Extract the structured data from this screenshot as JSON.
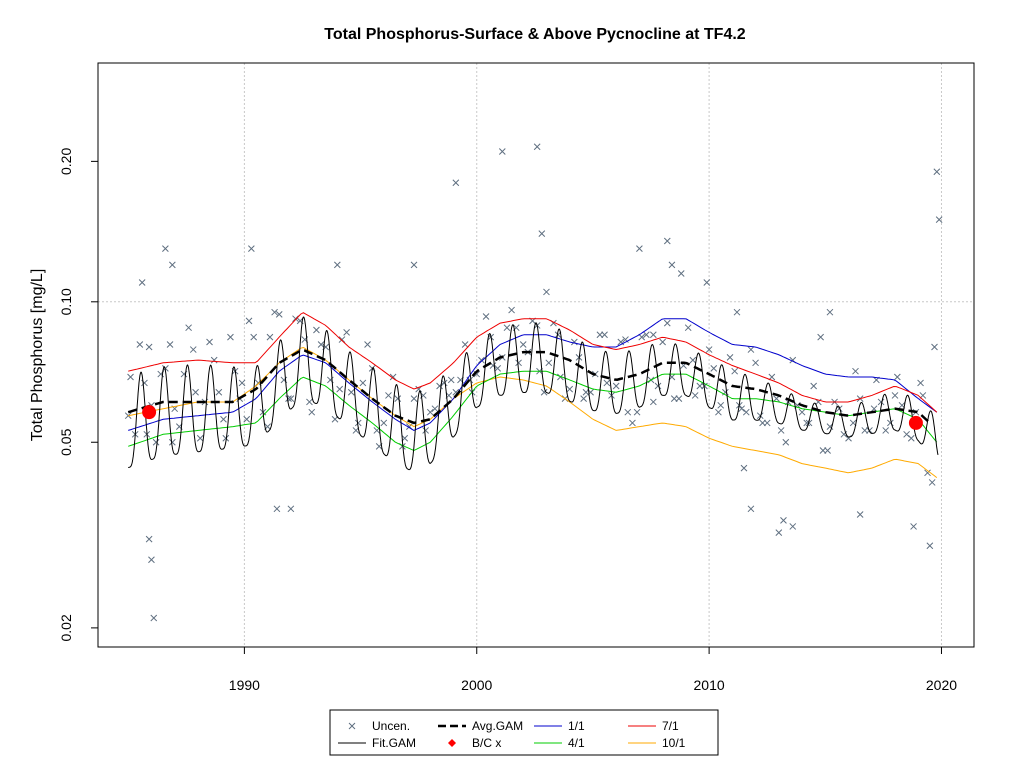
{
  "chart_data": {
    "type": "line",
    "title": "Total Phosphorus-Surface & Above Pycnocline at TF4.2",
    "xlabel": "",
    "ylabel": "Total Phosphorus [mg/L]",
    "y_scale": "log",
    "xlim": [
      1983.7,
      2021.4
    ],
    "ylim": [
      0.0182,
      0.325
    ],
    "x_ticks": [
      1990,
      2000,
      2010,
      2020
    ],
    "y_ticks": [
      0.02,
      0.05,
      0.1,
      0.2
    ],
    "y_tick_labels": [
      "0.02",
      "0.05",
      "0.10",
      "0.20"
    ],
    "grid": true,
    "colors": {
      "uncen": "#5f6f80",
      "fit": "#000000",
      "avg": "#000000",
      "bc": "#ff0000",
      "jan": "#0000cc",
      "apr": "#00cc00",
      "jul": "#ee0000",
      "oct": "#ffaa00"
    },
    "legend": {
      "placement": "bottom",
      "entries": [
        {
          "key": "uncen",
          "label": "Uncen."
        },
        {
          "key": "avg",
          "label": "Avg.GAM"
        },
        {
          "key": "jan",
          "label": "1/1"
        },
        {
          "key": "jul",
          "label": "7/1"
        },
        {
          "key": "fit",
          "label": "Fit.GAM"
        },
        {
          "key": "bc",
          "label": "B/C x"
        },
        {
          "key": "apr",
          "label": "4/1"
        },
        {
          "key": "oct",
          "label": "10/1"
        }
      ]
    },
    "bc_points": [
      {
        "x": 1985.9,
        "y": 0.058
      },
      {
        "x": 2018.9,
        "y": 0.055
      }
    ],
    "avg_gam": {
      "x": [
        1985.0,
        1986.5,
        1988.0,
        1989.5,
        1990.5,
        1991.5,
        1992.5,
        1993.5,
        1994.5,
        1995.5,
        1996.5,
        1997.3,
        1998.0,
        1999.0,
        2000.0,
        2001.0,
        2002.0,
        2003.0,
        2004.0,
        2005.0,
        2006.0,
        2007.0,
        2008.0,
        2009.0,
        2010.0,
        2011.0,
        2012.0,
        2013.0,
        2014.0,
        2015.0,
        2016.0,
        2017.0,
        2018.0,
        2019.0,
        2019.5
      ],
      "y": [
        0.058,
        0.061,
        0.061,
        0.061,
        0.065,
        0.074,
        0.079,
        0.075,
        0.068,
        0.062,
        0.057,
        0.055,
        0.056,
        0.062,
        0.071,
        0.076,
        0.078,
        0.078,
        0.075,
        0.07,
        0.068,
        0.07,
        0.074,
        0.074,
        0.07,
        0.066,
        0.065,
        0.063,
        0.06,
        0.058,
        0.057,
        0.058,
        0.059,
        0.058,
        0.055
      ]
    },
    "seasonal_curves": {
      "x": [
        1985.0,
        1986.5,
        1988.0,
        1989.5,
        1990.5,
        1991.5,
        1992.5,
        1993.5,
        1994.5,
        1995.5,
        1996.5,
        1997.3,
        1998.0,
        1999.0,
        2000.0,
        2001.0,
        2002.0,
        2003.0,
        2004.0,
        2005.0,
        2006.0,
        2007.0,
        2008.0,
        2009.0,
        2010.0,
        2011.0,
        2012.0,
        2013.0,
        2014.0,
        2015.0,
        2016.0,
        2017.0,
        2018.0,
        2019.0,
        2019.8
      ],
      "jan": [
        0.053,
        0.056,
        0.057,
        0.058,
        0.062,
        0.071,
        0.077,
        0.074,
        0.067,
        0.061,
        0.056,
        0.053,
        0.055,
        0.062,
        0.073,
        0.081,
        0.085,
        0.085,
        0.082,
        0.08,
        0.08,
        0.085,
        0.092,
        0.092,
        0.086,
        0.081,
        0.08,
        0.077,
        0.073,
        0.07,
        0.069,
        0.069,
        0.068,
        0.062,
        0.058
      ],
      "apr": [
        0.049,
        0.052,
        0.053,
        0.054,
        0.055,
        0.062,
        0.069,
        0.066,
        0.06,
        0.055,
        0.05,
        0.048,
        0.05,
        0.057,
        0.066,
        0.07,
        0.071,
        0.071,
        0.068,
        0.065,
        0.064,
        0.066,
        0.07,
        0.07,
        0.066,
        0.062,
        0.062,
        0.061,
        0.059,
        0.058,
        0.057,
        0.058,
        0.059,
        0.056,
        0.05
      ],
      "jul": [
        0.071,
        0.074,
        0.075,
        0.074,
        0.074,
        0.084,
        0.095,
        0.089,
        0.08,
        0.074,
        0.068,
        0.065,
        0.067,
        0.074,
        0.084,
        0.09,
        0.092,
        0.092,
        0.087,
        0.081,
        0.079,
        0.081,
        0.084,
        0.082,
        0.077,
        0.073,
        0.07,
        0.067,
        0.063,
        0.061,
        0.061,
        0.063,
        0.066,
        0.063,
        0.058
      ],
      "oct": [
        0.057,
        0.059,
        0.061,
        0.061,
        0.066,
        0.074,
        0.08,
        0.075,
        0.068,
        0.062,
        0.057,
        0.054,
        0.056,
        0.062,
        0.067,
        0.069,
        0.068,
        0.066,
        0.061,
        0.056,
        0.053,
        0.054,
        0.055,
        0.054,
        0.051,
        0.049,
        0.048,
        0.047,
        0.045,
        0.044,
        0.043,
        0.044,
        0.046,
        0.045,
        0.042
      ]
    },
    "fit_gam": {
      "x_start": 1985.0,
      "x_end": 2019.85,
      "period_years": 1,
      "peak_phase": 0.55,
      "shape": "seasonal oscillation between the 4/1 and 7/1 curves around Avg.GAM"
    },
    "observations_x": [
      1985.0,
      1985.1,
      1985.3,
      1985.5,
      1985.7,
      1985.8,
      1985.9,
      1986.0,
      1986.2,
      1986.4,
      1986.6,
      1986.8,
      1986.9,
      1987.0,
      1987.2,
      1987.4,
      1987.6,
      1987.8,
      1987.9,
      1988.1,
      1988.3,
      1988.5,
      1988.7,
      1988.9,
      1989.1,
      1989.2,
      1989.4,
      1989.6,
      1989.8,
      1989.9,
      1990.1,
      1990.2,
      1990.4,
      1990.6,
      1990.8,
      1991.0,
      1991.1,
      1991.3,
      1991.5,
      1991.7,
      1991.9,
      1992.0,
      1992.2,
      1992.4,
      1992.6,
      1992.8,
      1992.9,
      1993.1,
      1993.3,
      1993.5,
      1993.7,
      1993.9,
      1994.1,
      1994.2,
      1994.4,
      1994.6,
      1994.8,
      1994.9,
      1995.1,
      1995.3,
      1995.5,
      1995.7,
      1995.8,
      1996.0,
      1996.2,
      1996.4,
      1996.6,
      1996.8,
      1996.9,
      1997.1,
      1997.3,
      1997.5,
      1997.7,
      1997.8,
      1998.0,
      1998.2,
      1998.4,
      1998.6,
      1998.8,
      1998.9,
      1999.1,
      1999.3,
      1999.5,
      1999.7,
      1999.8,
      2000.0,
      2000.2,
      2000.4,
      2000.6,
      2000.7,
      2000.9,
      2001.1,
      2001.3,
      2001.5,
      2001.7,
      2001.8,
      2002.0,
      2002.2,
      2002.4,
      2002.6,
      2002.7,
      2002.9,
      2003.1,
      2003.3,
      2003.5,
      2003.6,
      2003.8,
      2004.0,
      2004.2,
      2004.4,
      2004.6,
      2004.7,
      2004.9,
      2005.1,
      2005.3,
      2005.5,
      2005.6,
      2005.8,
      2006.0,
      2006.2,
      2006.4,
      2006.5,
      2006.7,
      2006.9,
      2007.1,
      2007.3,
      2007.5,
      2007.6,
      2007.8,
      2008.0,
      2008.2,
      2008.4,
      2008.5,
      2008.7,
      2008.9,
      2009.1,
      2009.3,
      2009.4,
      2009.6,
      2009.8,
      2010.0,
      2010.2,
      2010.4,
      2010.5,
      2010.7,
      2010.9,
      2011.1,
      2011.3,
      2011.4,
      2011.6,
      2011.8,
      2012.0,
      2012.2,
      2012.3,
      2012.5,
      2012.7,
      2012.9,
      2013.1,
      2013.3,
      2013.4,
      2013.6,
      2013.8,
      2014.0,
      2014.2,
      2014.3,
      2014.5,
      2014.7,
      2014.9,
      2015.1,
      2015.2,
      2015.4,
      2015.6,
      2015.8,
      2016.0,
      2016.2,
      2016.3,
      2016.5,
      2016.7,
      2016.9,
      2017.1,
      2017.2,
      2017.4,
      2017.6,
      2017.8,
      2018.0,
      2018.1,
      2018.3,
      2018.5,
      2018.7,
      2018.9,
      2019.1,
      2019.2,
      2019.4,
      2019.6,
      2019.8,
      2019.9,
      1985.6,
      1985.9,
      1986.0,
      1986.1,
      1986.6,
      1986.9,
      1990.3,
      1991.4,
      1992.0,
      1994.0,
      1997.3,
      1999.1,
      2001.1,
      2002.6,
      2002.8,
      2003.0,
      2007.0,
      2007.6,
      2008.2,
      2008.4,
      2008.8,
      2009.9,
      2011.2,
      2011.5,
      2011.8,
      2013.0,
      2013.2,
      2013.6,
      2014.8,
      2015.2,
      2016.5,
      2018.8,
      2019.5,
      2019.7,
      2019.9,
      2020.0
    ],
    "observations_y": [
      0.057,
      0.069,
      0.052,
      0.081,
      0.067,
      0.052,
      0.08,
      0.06,
      0.05,
      0.07,
      0.072,
      0.081,
      0.05,
      0.059,
      0.054,
      0.07,
      0.088,
      0.079,
      0.064,
      0.051,
      0.061,
      0.082,
      0.075,
      0.064,
      0.056,
      0.051,
      0.084,
      0.071,
      0.062,
      0.067,
      0.056,
      0.091,
      0.084,
      0.067,
      0.058,
      0.054,
      0.084,
      0.095,
      0.094,
      0.068,
      0.062,
      0.062,
      0.092,
      0.091,
      0.083,
      0.061,
      0.058,
      0.087,
      0.081,
      0.08,
      0.068,
      0.056,
      0.065,
      0.083,
      0.086,
      0.064,
      0.053,
      0.055,
      0.067,
      0.081,
      0.072,
      0.053,
      0.049,
      0.055,
      0.063,
      0.069,
      0.062,
      0.049,
      0.051,
      0.054,
      0.062,
      0.065,
      0.063,
      0.053,
      0.058,
      0.059,
      0.066,
      0.067,
      0.063,
      0.068,
      0.064,
      0.068,
      0.081,
      0.068,
      0.064,
      0.07,
      0.075,
      0.093,
      0.084,
      0.073,
      0.072,
      0.076,
      0.088,
      0.096,
      0.088,
      0.074,
      0.081,
      0.078,
      0.091,
      0.089,
      0.071,
      0.064,
      0.074,
      0.09,
      0.085,
      0.069,
      0.062,
      0.065,
      0.082,
      0.076,
      0.062,
      0.064,
      0.064,
      0.07,
      0.085,
      0.085,
      0.067,
      0.063,
      0.066,
      0.082,
      0.083,
      0.058,
      0.055,
      0.058,
      0.084,
      0.085,
      0.068,
      0.061,
      0.066,
      0.082,
      0.09,
      0.069,
      0.062,
      0.062,
      0.073,
      0.088,
      0.075,
      0.063,
      0.066,
      0.066,
      0.079,
      0.072,
      0.058,
      0.06,
      0.064,
      0.076,
      0.071,
      0.06,
      0.059,
      0.058,
      0.079,
      0.074,
      0.057,
      0.055,
      0.055,
      0.069,
      0.062,
      0.053,
      0.05,
      0.061,
      0.075,
      0.06,
      0.058,
      0.055,
      0.055,
      0.066,
      0.061,
      0.048,
      0.048,
      0.054,
      0.061,
      0.059,
      0.052,
      0.051,
      0.055,
      0.071,
      0.062,
      0.053,
      0.053,
      0.059,
      0.068,
      0.061,
      0.053,
      0.055,
      0.063,
      0.069,
      0.06,
      0.052,
      0.051,
      0.058,
      0.067,
      0.063,
      0.043,
      0.041,
      0.19,
      0.15,
      0.11,
      0.031,
      0.028,
      0.021,
      0.13,
      0.12,
      0.13,
      0.036,
      0.036,
      0.12,
      0.12,
      0.18,
      0.21,
      0.215,
      0.14,
      0.105,
      0.13,
      0.085,
      0.135,
      0.12,
      0.115,
      0.11,
      0.095,
      0.044,
      0.036,
      0.032,
      0.034,
      0.033,
      0.084,
      0.095,
      0.035,
      0.033,
      0.03,
      0.08
    ]
  }
}
